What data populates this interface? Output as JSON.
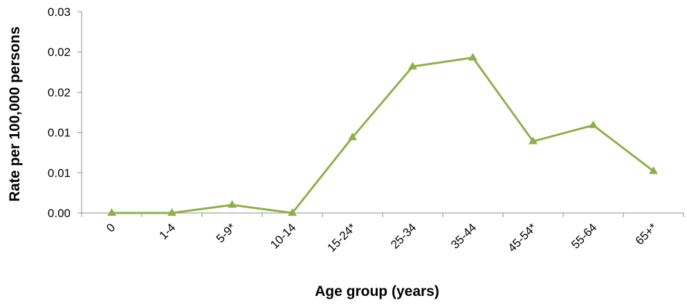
{
  "chart_data": {
    "type": "line",
    "title": "",
    "xlabel": "Age group (years)",
    "ylabel": "Rate per 100,000 persons",
    "categories": [
      "0",
      "1-4",
      "5-9*",
      "10-14",
      "15-24*",
      "25-34",
      "35-44",
      "45-54*",
      "55-64",
      "65+*"
    ],
    "series": [
      {
        "values": [
          0.0,
          0.0,
          0.001,
          0.0,
          0.0094,
          0.0182,
          0.0193,
          0.0089,
          0.0109,
          0.0052
        ]
      }
    ],
    "yticks": [
      {
        "value": 0.0,
        "label": "0.00"
      },
      {
        "value": 0.005,
        "label": "0.01"
      },
      {
        "value": 0.01,
        "label": "0.01"
      },
      {
        "value": 0.015,
        "label": "0.02"
      },
      {
        "value": 0.02,
        "label": "0.02"
      },
      {
        "value": 0.025,
        "label": "0.03"
      }
    ],
    "ylim": [
      0,
      0.025
    ],
    "grid": false,
    "legend": "none",
    "colors": {
      "series": "#8db04a",
      "axis": "#8c8c8c",
      "text": "#000000"
    },
    "marker": "triangle"
  }
}
